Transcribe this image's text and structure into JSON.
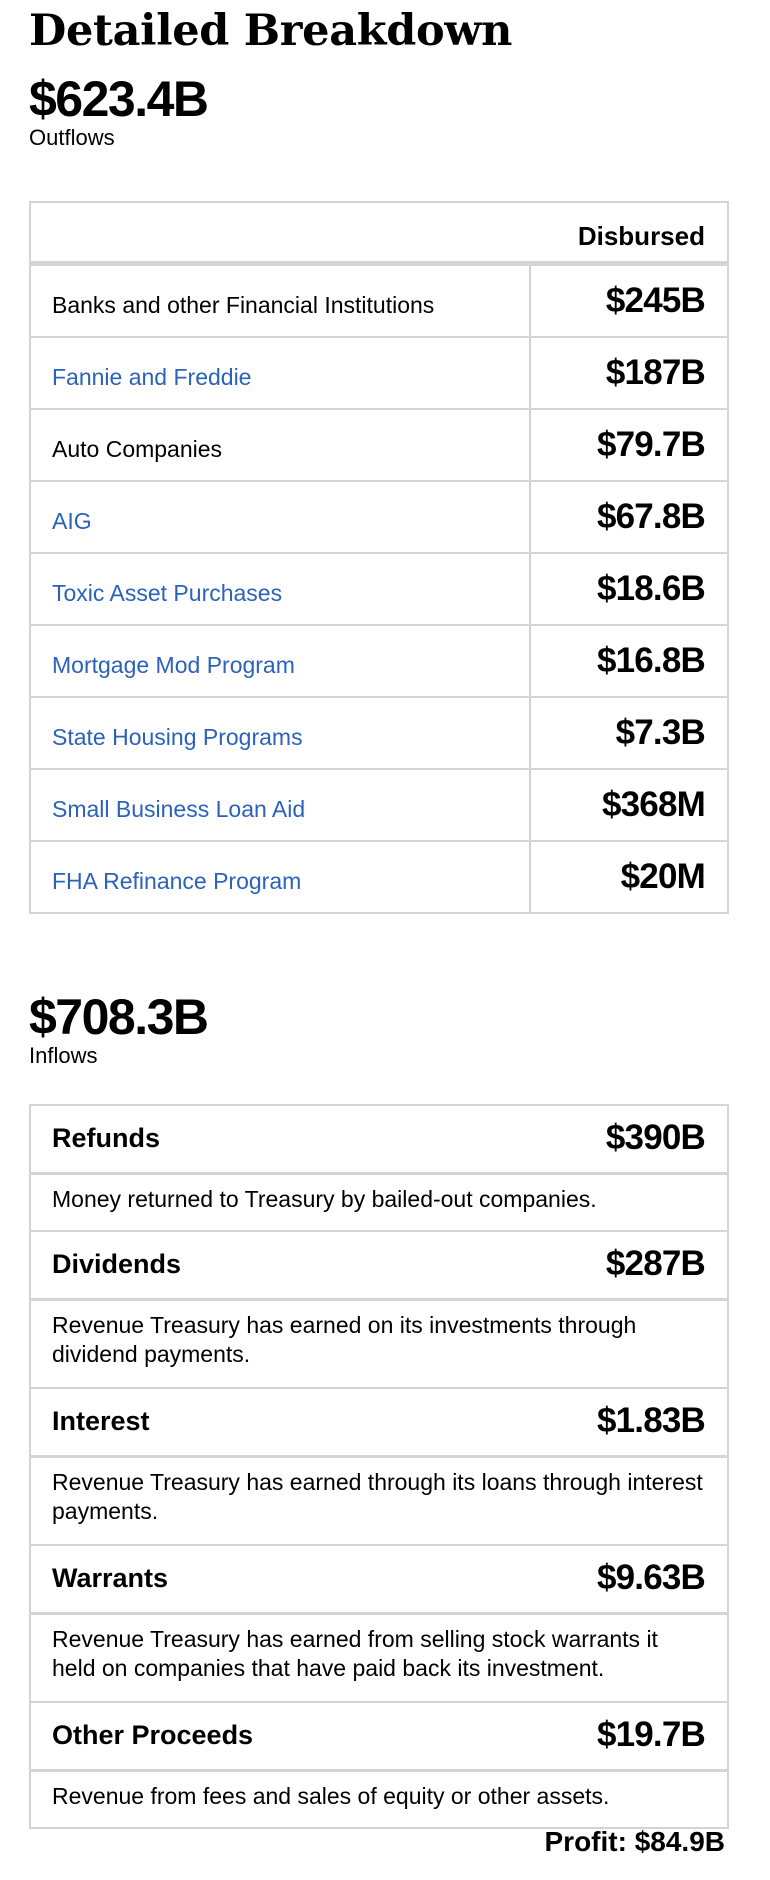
{
  "title": "Detailed Breakdown",
  "outflows": {
    "total": "$623.4B",
    "label": "Outflows",
    "column_header": "Disbursed",
    "rows": [
      {
        "name": "Banks and other Financial Institutions",
        "value": "$245B"
      },
      {
        "name": "Fannie and Freddie",
        "value": "$187B"
      },
      {
        "name": "Auto Companies",
        "value": "$79.7B"
      },
      {
        "name": "AIG",
        "value": "$67.8B"
      },
      {
        "name": "Toxic Asset Purchases",
        "value": "$18.6B"
      },
      {
        "name": "Mortgage Mod Program",
        "value": "$16.8B"
      },
      {
        "name": "State Housing Programs",
        "value": "$7.3B"
      },
      {
        "name": "Small Business Loan Aid",
        "value": "$368M"
      },
      {
        "name": "FHA Refinance Program",
        "value": "$20M"
      }
    ]
  },
  "inflows": {
    "total": "$708.3B",
    "label": "Inflows",
    "items": [
      {
        "name": "Refunds",
        "value": "$390B",
        "description": "Money returned to Treasury by bailed-out companies."
      },
      {
        "name": "Dividends",
        "value": "$287B",
        "description": "Revenue Treasury has earned on its investments through dividend payments."
      },
      {
        "name": "Interest",
        "value": "$1.83B",
        "description": "Revenue Treasury has earned through its loans through interest payments."
      },
      {
        "name": "Warrants",
        "value": "$9.63B",
        "description": "Revenue Treasury has earned from selling stock warrants it held on companies that have paid back its investment."
      },
      {
        "name": "Other Proceeds",
        "value": "$19.7B",
        "description": "Revenue from fees and sales of equity or other assets."
      }
    ]
  },
  "profit": "Profit: $84.9B",
  "colors": {
    "link": "#2b62ba",
    "border": "#d4d4d4"
  }
}
